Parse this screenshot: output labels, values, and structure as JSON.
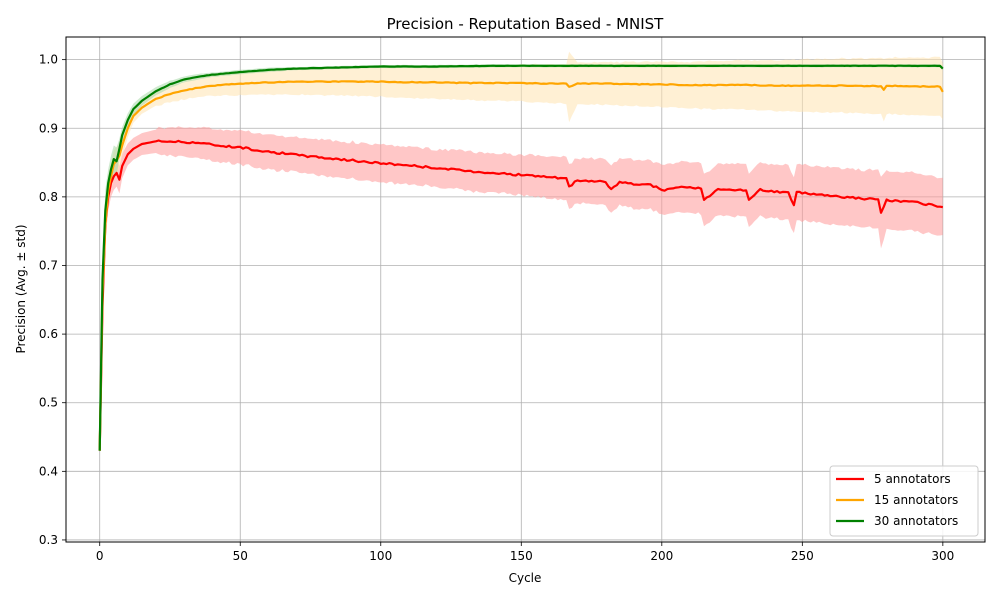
{
  "chart_data": {
    "type": "line",
    "title": "Precision - Reputation Based - MNIST",
    "xlabel": "Cycle",
    "ylabel": "Precision (Avg. ± std)",
    "xlim": [
      -12,
      315
    ],
    "ylim": [
      0.297,
      1.033
    ],
    "xticks": [
      0,
      50,
      100,
      150,
      200,
      250,
      300
    ],
    "yticks": [
      0.3,
      0.4,
      0.5,
      0.6,
      0.7,
      0.8,
      0.9,
      1.0
    ],
    "xtick_labels": [
      "0",
      "50",
      "100",
      "150",
      "200",
      "250",
      "300"
    ],
    "ytick_labels": [
      "0.3",
      "0.4",
      "0.5",
      "0.6",
      "0.7",
      "0.8",
      "0.9",
      "1.0"
    ],
    "grid": true,
    "legend_position": "lower-right",
    "x_range": [
      0,
      300
    ],
    "series": [
      {
        "name": "5 annotators",
        "color": "#ff0000",
        "band_color": "#ff9999",
        "x": [
          0,
          1,
          2,
          3,
          4,
          5,
          6,
          7,
          8,
          10,
          12,
          15,
          20,
          25,
          30,
          35,
          40,
          50,
          60,
          70,
          80,
          90,
          100,
          110,
          120,
          130,
          140,
          150,
          160,
          166,
          167,
          170,
          180,
          182,
          185,
          190,
          195,
          200,
          210,
          214,
          215,
          220,
          230,
          231,
          235,
          240,
          245,
          247,
          248,
          250,
          260,
          270,
          277,
          278,
          280,
          290,
          300
        ],
        "values": [
          0.43,
          0.64,
          0.76,
          0.8,
          0.82,
          0.83,
          0.835,
          0.825,
          0.845,
          0.862,
          0.87,
          0.877,
          0.881,
          0.881,
          0.88,
          0.879,
          0.876,
          0.872,
          0.866,
          0.861,
          0.857,
          0.853,
          0.849,
          0.846,
          0.842,
          0.838,
          0.835,
          0.832,
          0.829,
          0.826,
          0.815,
          0.824,
          0.822,
          0.81,
          0.822,
          0.818,
          0.82,
          0.81,
          0.815,
          0.812,
          0.795,
          0.812,
          0.81,
          0.795,
          0.81,
          0.808,
          0.806,
          0.788,
          0.806,
          0.806,
          0.802,
          0.798,
          0.796,
          0.777,
          0.795,
          0.792,
          0.785
        ],
        "std": [
          0.0,
          0.03,
          0.03,
          0.02,
          0.02,
          0.02,
          0.02,
          0.02,
          0.018,
          0.016,
          0.016,
          0.016,
          0.017,
          0.019,
          0.02,
          0.021,
          0.022,
          0.023,
          0.024,
          0.024,
          0.025,
          0.025,
          0.026,
          0.026,
          0.026,
          0.027,
          0.027,
          0.028,
          0.029,
          0.03,
          0.03,
          0.031,
          0.032,
          0.033,
          0.033,
          0.034,
          0.034,
          0.035,
          0.035,
          0.036,
          0.036,
          0.036,
          0.037,
          0.037,
          0.038,
          0.038,
          0.039,
          0.04,
          0.039,
          0.039,
          0.04,
          0.04,
          0.041,
          0.05,
          0.041,
          0.041,
          0.04
        ]
      },
      {
        "name": "15 annotators",
        "color": "#ffa500",
        "band_color": "#ffe4b0",
        "x": [
          0,
          1,
          2,
          3,
          4,
          5,
          6,
          7,
          8,
          10,
          12,
          15,
          20,
          25,
          30,
          35,
          40,
          50,
          60,
          70,
          80,
          90,
          100,
          110,
          120,
          130,
          140,
          150,
          160,
          166,
          167,
          170,
          180,
          190,
          200,
          210,
          220,
          230,
          240,
          250,
          260,
          270,
          278,
          279,
          280,
          290,
          299,
          300
        ],
        "values": [
          0.43,
          0.66,
          0.76,
          0.81,
          0.83,
          0.848,
          0.853,
          0.86,
          0.875,
          0.9,
          0.918,
          0.93,
          0.943,
          0.95,
          0.955,
          0.959,
          0.962,
          0.965,
          0.967,
          0.968,
          0.968,
          0.968,
          0.968,
          0.967,
          0.967,
          0.966,
          0.966,
          0.966,
          0.965,
          0.965,
          0.96,
          0.965,
          0.965,
          0.964,
          0.964,
          0.963,
          0.963,
          0.963,
          0.962,
          0.962,
          0.962,
          0.962,
          0.961,
          0.956,
          0.962,
          0.961,
          0.961,
          0.953
        ],
        "std": [
          0.0,
          0.03,
          0.03,
          0.02,
          0.02,
          0.02,
          0.02,
          0.02,
          0.016,
          0.013,
          0.01,
          0.009,
          0.01,
          0.011,
          0.012,
          0.013,
          0.014,
          0.016,
          0.017,
          0.018,
          0.019,
          0.02,
          0.021,
          0.022,
          0.023,
          0.024,
          0.025,
          0.026,
          0.027,
          0.028,
          0.05,
          0.029,
          0.03,
          0.031,
          0.032,
          0.033,
          0.034,
          0.035,
          0.036,
          0.037,
          0.038,
          0.039,
          0.04,
          0.045,
          0.04,
          0.041,
          0.042,
          0.04
        ]
      },
      {
        "name": "30 annotators",
        "color": "#008000",
        "band_color": "#a8d8a8",
        "x": [
          0,
          1,
          2,
          3,
          4,
          5,
          6,
          7,
          8,
          10,
          12,
          15,
          20,
          25,
          30,
          35,
          40,
          50,
          60,
          70,
          80,
          90,
          100,
          120,
          140,
          160,
          180,
          200,
          220,
          240,
          260,
          280,
          299,
          300
        ],
        "values": [
          0.43,
          0.68,
          0.78,
          0.82,
          0.84,
          0.855,
          0.852,
          0.87,
          0.89,
          0.912,
          0.928,
          0.94,
          0.954,
          0.964,
          0.971,
          0.975,
          0.978,
          0.982,
          0.985,
          0.987,
          0.988,
          0.989,
          0.99,
          0.99,
          0.991,
          0.991,
          0.991,
          0.991,
          0.991,
          0.991,
          0.991,
          0.991,
          0.991,
          0.987
        ],
        "std": [
          0.0,
          0.03,
          0.03,
          0.02,
          0.02,
          0.02,
          0.02,
          0.015,
          0.012,
          0.01,
          0.008,
          0.007,
          0.006,
          0.005,
          0.004,
          0.004,
          0.003,
          0.003,
          0.003,
          0.002,
          0.002,
          0.002,
          0.002,
          0.002,
          0.002,
          0.002,
          0.002,
          0.002,
          0.002,
          0.002,
          0.002,
          0.002,
          0.002,
          0.002
        ]
      }
    ]
  }
}
